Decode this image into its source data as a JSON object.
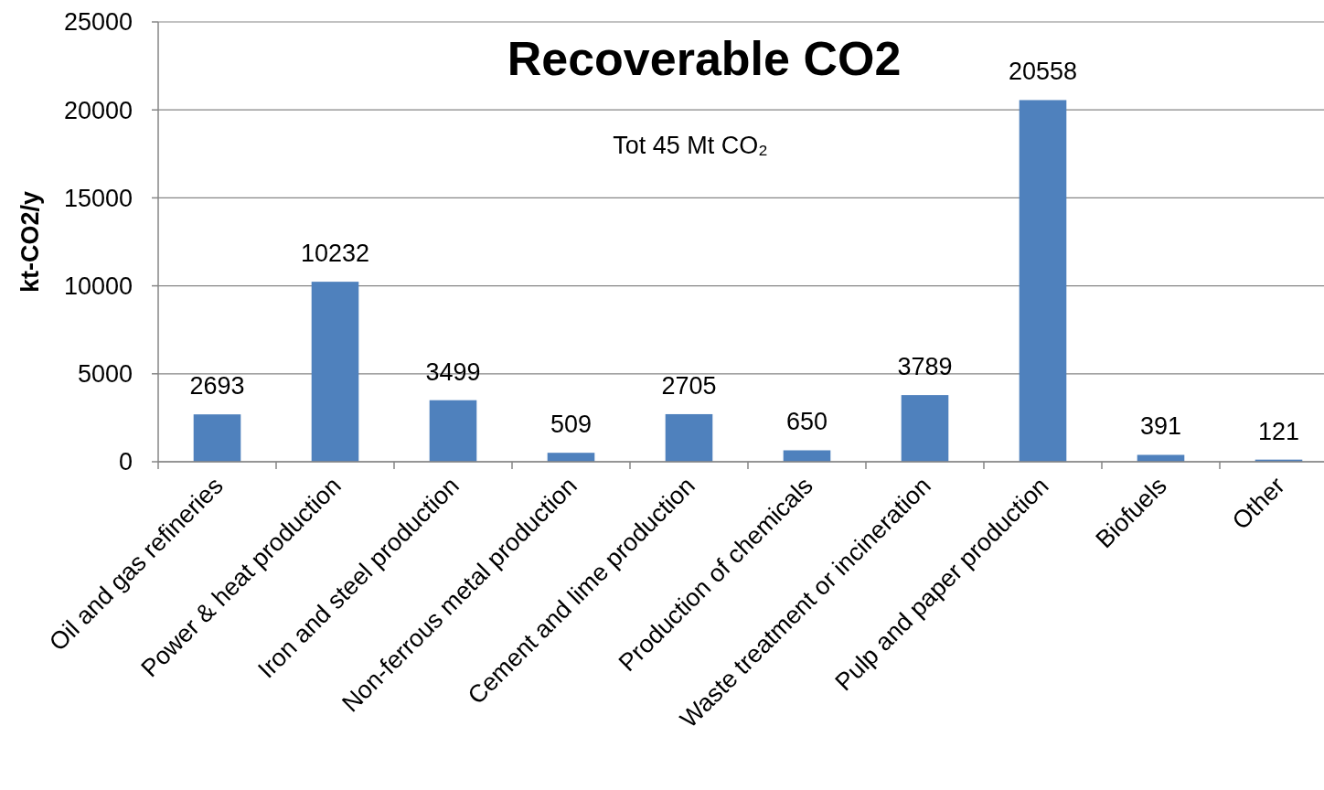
{
  "chart_data": {
    "type": "bar",
    "title": "Recoverable CO2",
    "ylabel": "kt-CO2/y",
    "annotations": [
      "Tot 45 Mt CO₂"
    ],
    "categories": [
      "Oil and gas refineries",
      "Power & heat production",
      "Iron and steel production",
      "Non-ferrous metal production",
      "Cement and lime production",
      "Production of chemicals",
      "Waste treatment or incineration",
      "Pulp and paper production",
      "Biofuels",
      "Other"
    ],
    "values": [
      2693,
      10232,
      3499,
      509,
      2705,
      650,
      3789,
      20558,
      391,
      121
    ],
    "color": "#4f81bd",
    "ylim": [
      0,
      25000
    ],
    "yticks": [
      0,
      5000,
      10000,
      15000,
      20000,
      25000
    ],
    "grid": "y",
    "data_labels": true
  }
}
